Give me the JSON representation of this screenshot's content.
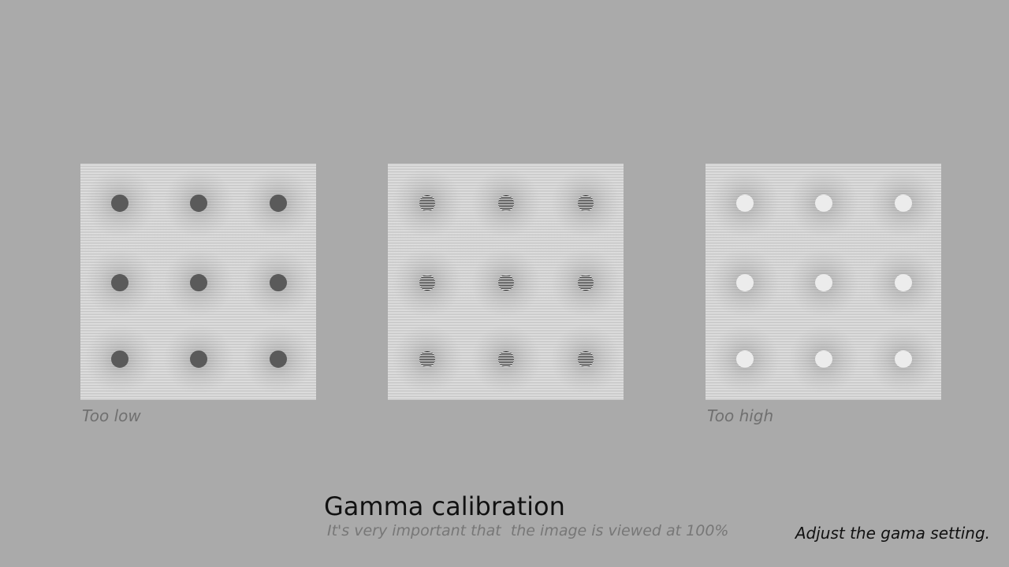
{
  "panels": [
    {
      "id": "low",
      "caption": "Too low",
      "dot_style": "dark-solid"
    },
    {
      "id": "ok",
      "caption": "",
      "dot_style": "striped-neutral"
    },
    {
      "id": "high",
      "caption": "Too high",
      "dot_style": "light-solid"
    }
  ],
  "captions": {
    "low": "Too low",
    "high": "Too high"
  },
  "title": "Gamma calibration",
  "subtitle": "It's very important that  the image is viewed at 100%",
  "instruction": "Adjust the gama setting.",
  "colors": {
    "background": "#aaaaaa",
    "panel": "#d2d2d2",
    "dark_dot": "#5a5a5a",
    "light_dot": "#ececec",
    "title": "#111111",
    "subtitle": "#777777"
  }
}
